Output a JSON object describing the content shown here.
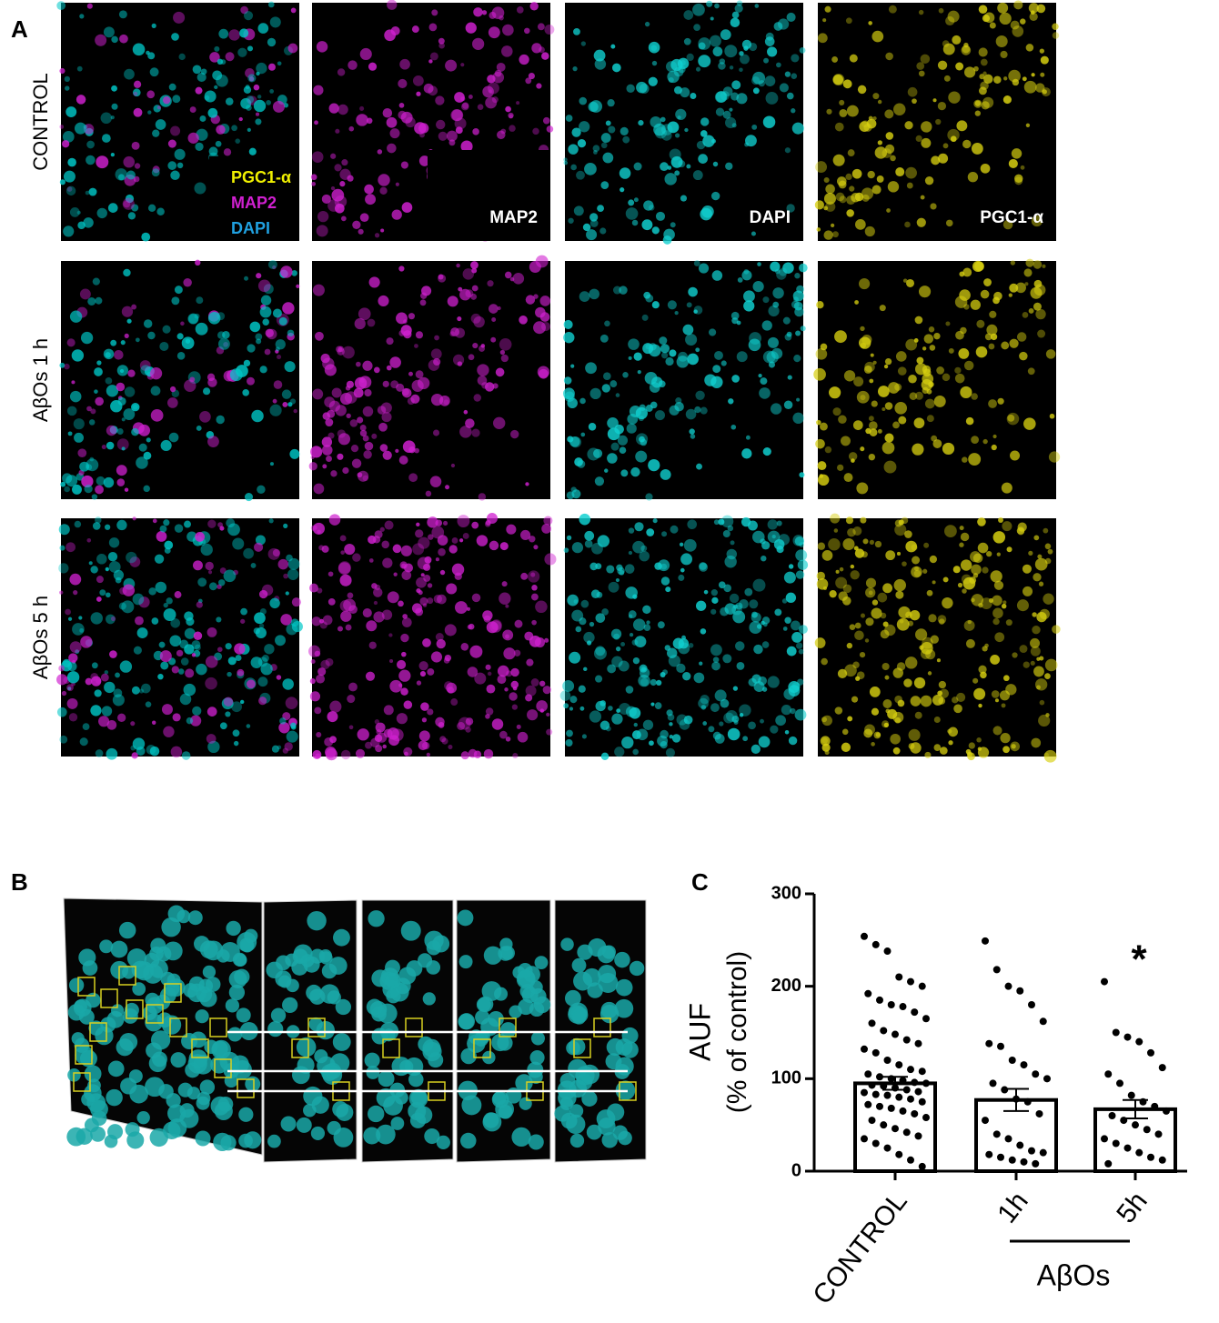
{
  "figure": {
    "panel_labels": [
      "A",
      "B",
      "C"
    ],
    "row_labels": [
      "CONTROL",
      "AβOs 1 h",
      "AβOs 5 h"
    ],
    "merge_legend": [
      "PGC1-α",
      "MAP2",
      "DAPI"
    ],
    "channel_labels": [
      "MAP2",
      "DAPI",
      "PGC1-α"
    ]
  },
  "chart_data": {
    "type": "bar",
    "categories": [
      "CONTROL",
      "1h",
      "5h"
    ],
    "values": [
      95,
      77,
      67
    ],
    "errors": [
      7,
      12,
      10
    ],
    "points": [
      [
        254,
        245,
        238,
        210,
        205,
        200,
        192,
        185,
        180,
        178,
        172,
        165,
        160,
        152,
        148,
        142,
        138,
        132,
        128,
        120,
        115,
        110,
        108,
        105,
        102,
        100,
        98,
        96,
        95,
        93,
        92,
        90,
        88,
        86,
        85,
        83,
        82,
        80,
        78,
        75,
        72,
        70,
        68,
        65,
        62,
        58,
        55,
        50,
        46,
        42,
        38,
        35,
        30,
        25,
        18,
        12,
        5
      ],
      [
        249,
        218,
        200,
        195,
        180,
        162,
        138,
        135,
        120,
        115,
        105,
        100,
        95,
        88,
        78,
        75,
        62,
        55,
        40,
        35,
        28,
        22,
        20,
        18,
        15,
        12,
        10,
        8
      ],
      [
        205,
        150,
        145,
        140,
        128,
        112,
        105,
        95,
        82,
        75,
        70,
        65,
        60,
        55,
        50,
        45,
        40,
        35,
        30,
        25,
        20,
        15,
        12,
        8
      ]
    ],
    "color": "#ffffff",
    "ylim": [
      0,
      300
    ],
    "yticks": [
      0,
      100,
      200,
      300
    ],
    "ylabel": "AUF",
    "ylabel_sub": "(% of control)",
    "group_label": "AβOs",
    "annotation": "*"
  }
}
